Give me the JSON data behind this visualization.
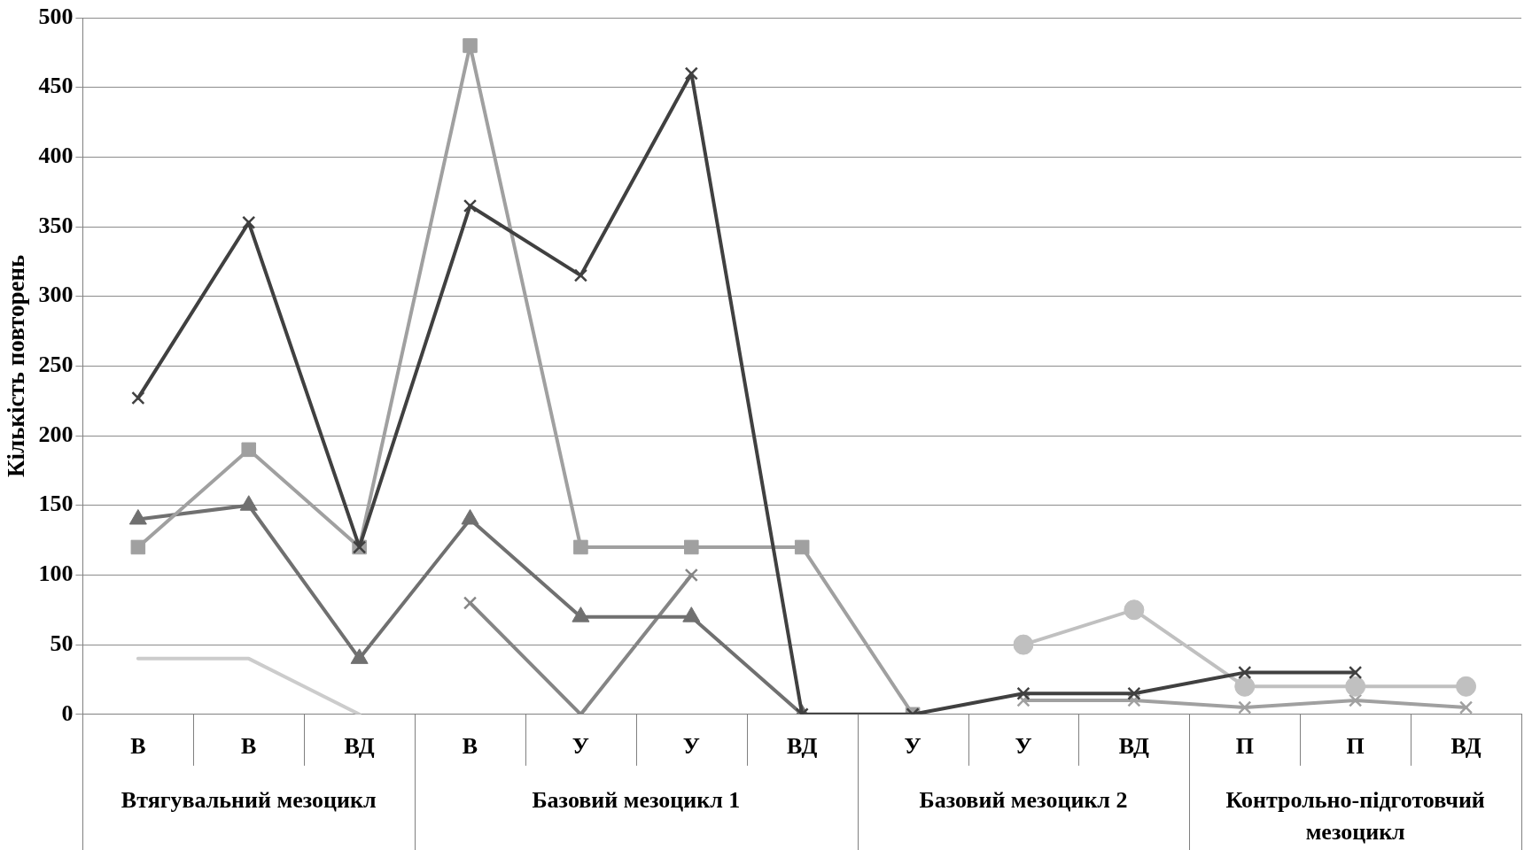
{
  "chart_data": {
    "type": "line",
    "ylabel": "Кількість повторень",
    "categories": [
      "В",
      "В",
      "ВД",
      "В",
      "У",
      "У",
      "ВД",
      "У",
      "У",
      "ВД",
      "П",
      "П",
      "ВД"
    ],
    "series": [
      {
        "color": "#404040",
        "marker": "cross",
        "values": [
          227,
          353,
          120,
          365,
          315,
          460,
          0,
          0,
          15,
          15,
          30,
          30,
          null
        ]
      },
      {
        "color": "#a0a0a0",
        "marker": "square",
        "values": [
          120,
          190,
          120,
          480,
          120,
          120,
          120,
          0,
          null,
          null,
          null,
          null,
          null
        ]
      },
      {
        "color": "#707070",
        "marker": "triangle",
        "values": [
          140,
          150,
          40,
          140,
          70,
          70,
          0,
          null,
          null,
          null,
          null,
          null,
          null
        ]
      },
      {
        "color": "#cccccc",
        "marker": "none",
        "values": [
          40,
          40,
          0,
          null,
          null,
          null,
          null,
          null,
          null,
          null,
          null,
          null,
          null
        ]
      },
      {
        "color": "#858585",
        "marker": "cross",
        "values": [
          null,
          null,
          null,
          80,
          0,
          100,
          null,
          null,
          null,
          null,
          null,
          null,
          null
        ]
      },
      {
        "color": "#c0c0c0",
        "marker": "circle",
        "values": [
          null,
          null,
          null,
          null,
          null,
          null,
          null,
          null,
          50,
          75,
          20,
          20,
          20
        ]
      },
      {
        "color": "#a0a0a0",
        "marker": "cross",
        "values": [
          null,
          null,
          null,
          null,
          null,
          null,
          null,
          null,
          10,
          10,
          5,
          10,
          5
        ]
      }
    ],
    "ylim": [
      0,
      500
    ],
    "yticks": [
      0,
      50,
      100,
      150,
      200,
      250,
      300,
      350,
      400,
      450,
      500
    ],
    "grid": "y",
    "legend": false,
    "annotations": [
      "Втягувальний мезоцикл",
      "Базовий мезоцикл 1",
      "Базовий мезоцикл 2",
      "Контрольно-підготовчий мезоцикл"
    ]
  }
}
